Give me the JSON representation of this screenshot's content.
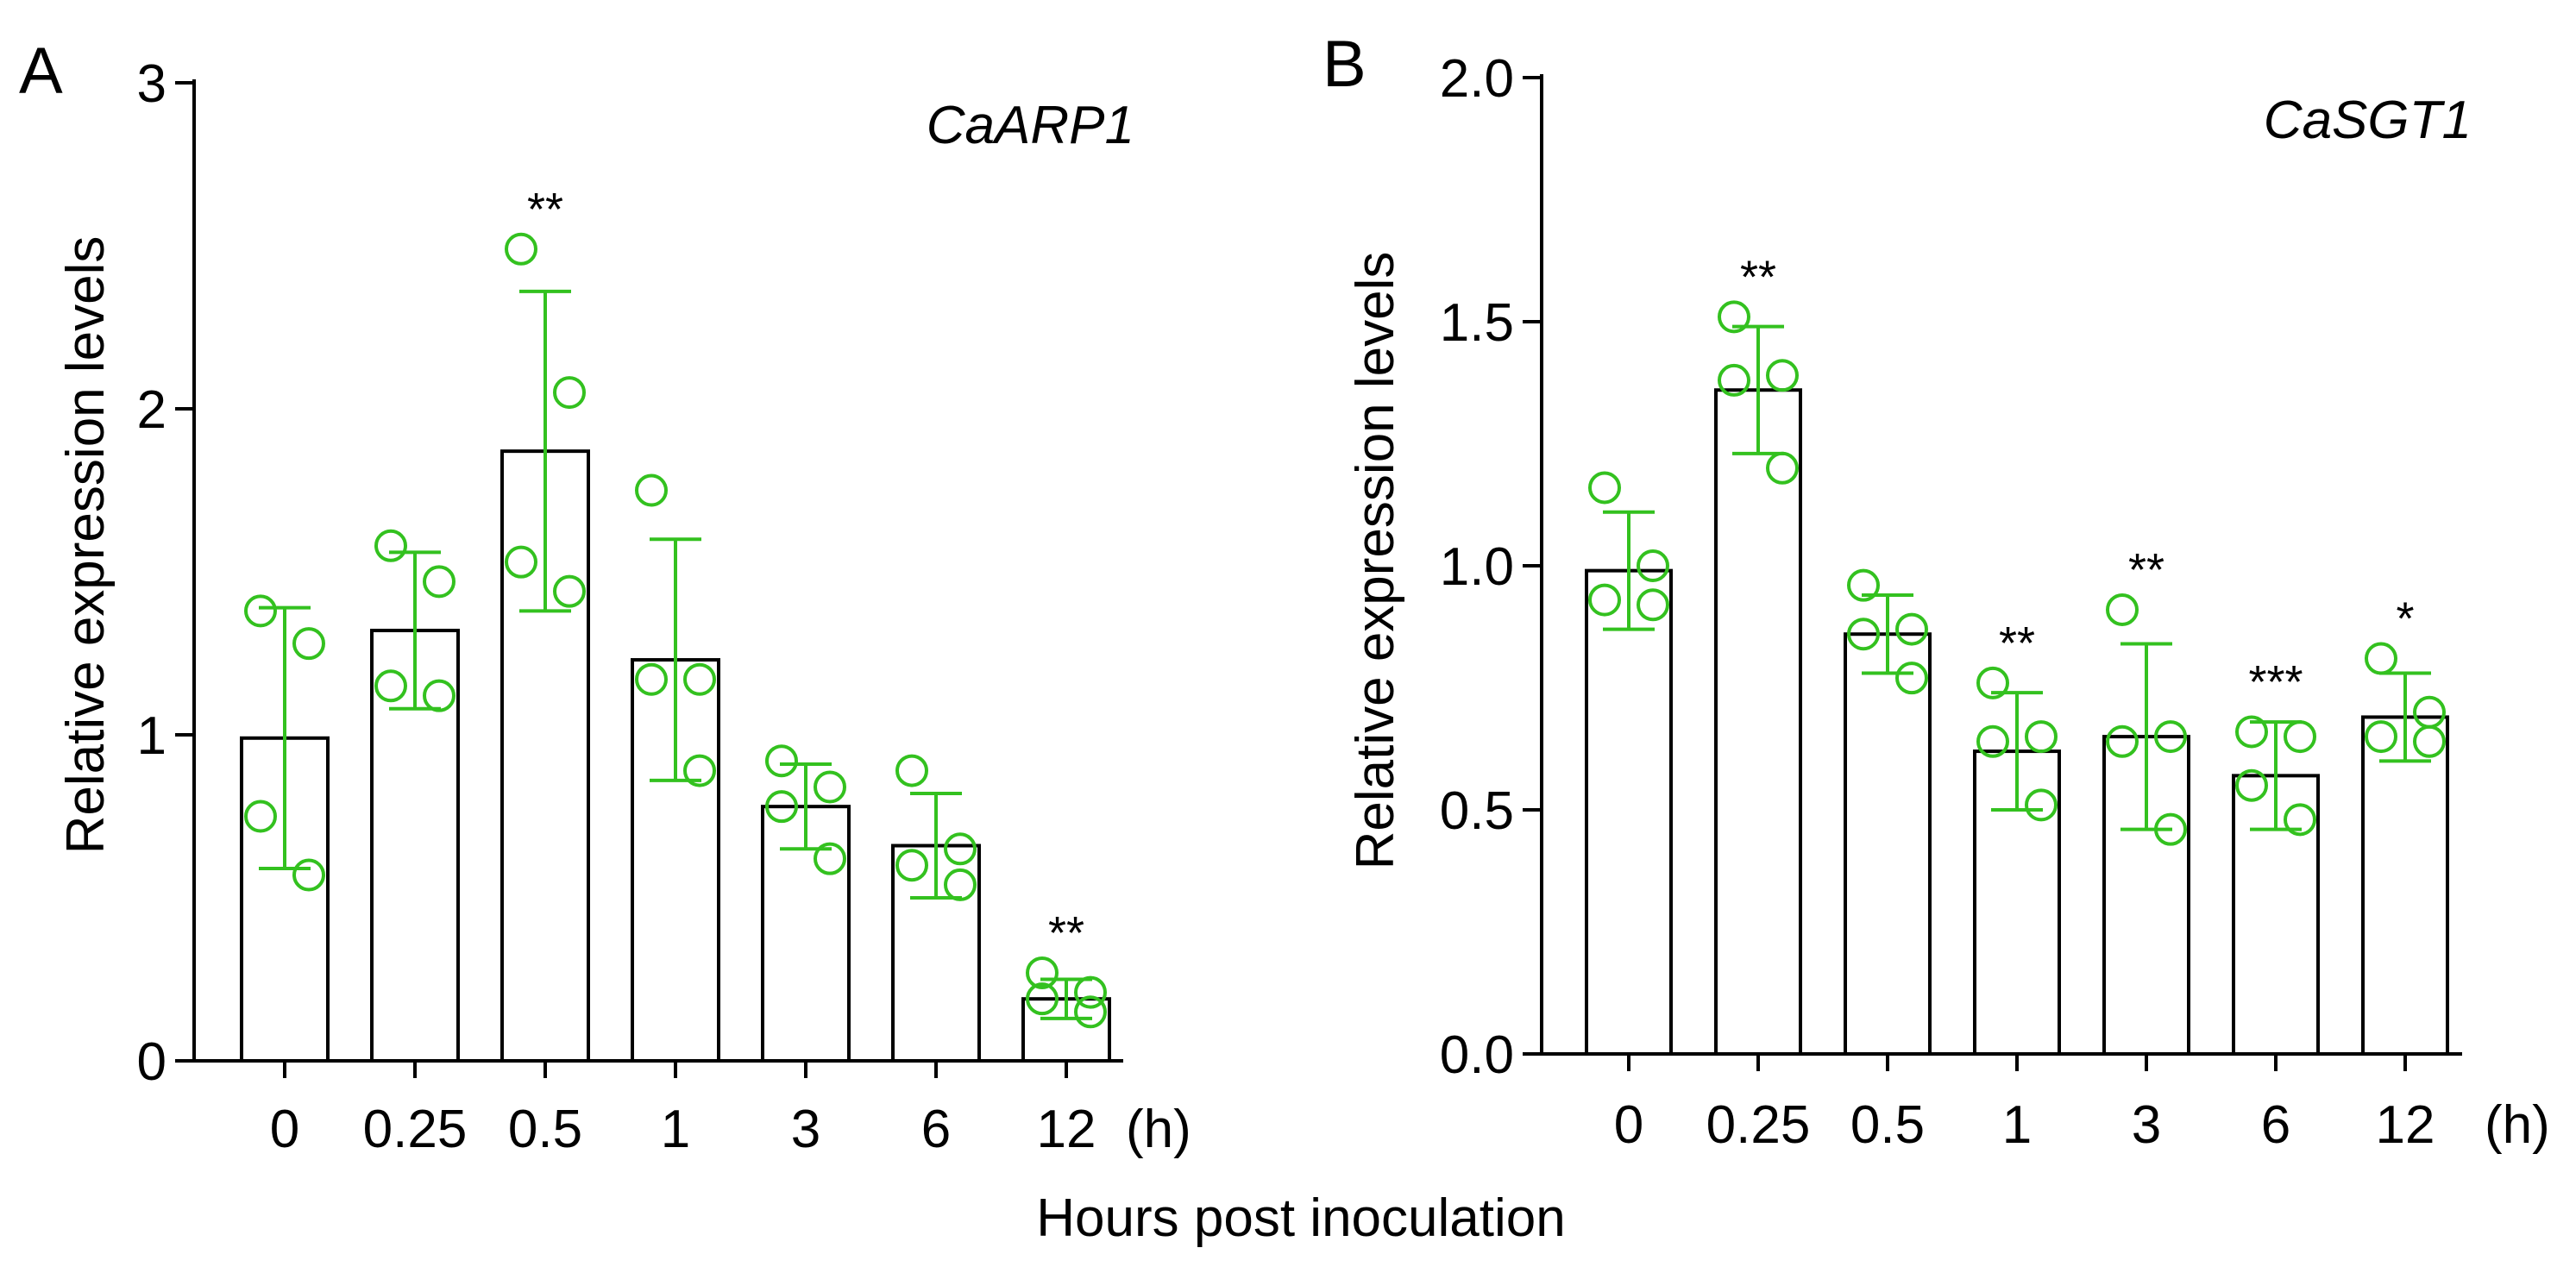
{
  "figure": {
    "shared_xlabel": "Hours post inoculation",
    "unit_label": "(h)",
    "colors": {
      "bar_fill": "#ffffff",
      "bar_stroke": "#000000",
      "points": "#33c11f",
      "errorbars": "#33c11f",
      "axes": "#000000"
    }
  },
  "chart_data": [
    {
      "type": "bar",
      "panel_label": "A",
      "title": "CaARP1",
      "xlabel": "Hours post inoculation",
      "ylabel": "Relative expression levels",
      "categories": [
        "0",
        "0.25",
        "0.5",
        "1",
        "3",
        "6",
        "12"
      ],
      "ylim": [
        0,
        3
      ],
      "yticks": [
        0,
        1,
        2,
        3
      ],
      "ytick_labels": [
        "0",
        "1",
        "2",
        "3"
      ],
      "values": [
        0.99,
        1.32,
        1.87,
        1.23,
        0.78,
        0.66,
        0.19
      ],
      "sd": [
        0.4,
        0.24,
        0.49,
        0.37,
        0.13,
        0.16,
        0.06
      ],
      "points": [
        [
          1.38,
          1.28,
          0.75,
          0.57
        ],
        [
          1.58,
          1.47,
          1.15,
          1.12
        ],
        [
          2.49,
          2.05,
          1.53,
          1.44
        ],
        [
          1.75,
          1.17,
          1.17,
          0.89
        ],
        [
          0.92,
          0.84,
          0.78,
          0.62
        ],
        [
          0.89,
          0.65,
          0.6,
          0.54
        ],
        [
          0.27,
          0.21,
          0.19,
          0.15
        ]
      ],
      "significance": [
        "",
        "",
        "**",
        "",
        "",
        "",
        "**"
      ]
    },
    {
      "type": "bar",
      "panel_label": "B",
      "title": "CaSGT1",
      "xlabel": "Hours post inoculation",
      "ylabel": "Relative expression levels",
      "categories": [
        "0",
        "0.25",
        "0.5",
        "1",
        "3",
        "6",
        "12"
      ],
      "ylim": [
        0,
        2.0
      ],
      "yticks": [
        0,
        0.5,
        1.0,
        1.5,
        2.0
      ],
      "ytick_labels": [
        "0.0",
        "0.5",
        "1.0",
        "1.5",
        "2.0"
      ],
      "values": [
        0.99,
        1.36,
        0.86,
        0.62,
        0.65,
        0.57,
        0.69
      ],
      "sd": [
        0.12,
        0.13,
        0.08,
        0.12,
        0.19,
        0.11,
        0.09
      ],
      "points": [
        [
          1.16,
          1.0,
          0.93,
          0.92
        ],
        [
          1.51,
          1.39,
          1.38,
          1.2
        ],
        [
          0.96,
          0.87,
          0.86,
          0.77
        ],
        [
          0.76,
          0.65,
          0.64,
          0.51
        ],
        [
          0.91,
          0.65,
          0.64,
          0.46
        ],
        [
          0.66,
          0.65,
          0.55,
          0.48
        ],
        [
          0.81,
          0.7,
          0.65,
          0.64
        ]
      ],
      "significance": [
        "",
        "**",
        "",
        "**",
        "**",
        "***",
        "*"
      ]
    }
  ]
}
